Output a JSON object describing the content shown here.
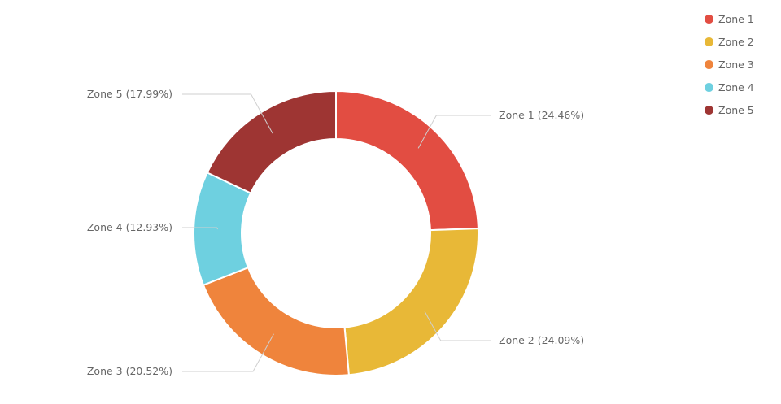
{
  "chart_data": {
    "type": "pie",
    "variant": "donut",
    "categories": [
      "Zone 1",
      "Zone 2",
      "Zone 3",
      "Zone 4",
      "Zone 5"
    ],
    "values": [
      24.46,
      24.09,
      20.52,
      12.93,
      17.99
    ],
    "colors": [
      "#e24d42",
      "#e8b837",
      "#ef843c",
      "#6ed0e0",
      "#9e3533"
    ],
    "data_labels": [
      "Zone 1 (24.46%)",
      "Zone 2 (24.09%)",
      "Zone 3 (20.52%)",
      "Zone 4 (12.93%)",
      "Zone 5 (17.99%)"
    ],
    "legend": {
      "position": "top-right",
      "entries": [
        "Zone 1",
        "Zone 2",
        "Zone 3",
        "Zone 4",
        "Zone 5"
      ]
    },
    "title": "",
    "start_angle": "12 o'clock",
    "direction": "clockwise"
  }
}
